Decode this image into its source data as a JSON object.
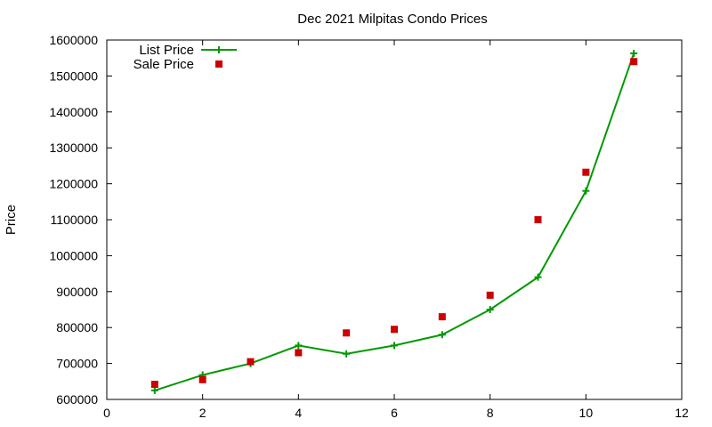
{
  "chart_data": {
    "type": "line",
    "title": "Dec 2021 Milpitas Condo Prices",
    "xlabel": "",
    "ylabel": "Price",
    "xlim": [
      0,
      12
    ],
    "ylim": [
      600000,
      1600000
    ],
    "xticks": [
      0,
      2,
      4,
      6,
      8,
      10,
      12
    ],
    "yticks": [
      600000,
      700000,
      800000,
      900000,
      1000000,
      1100000,
      1200000,
      1300000,
      1400000,
      1500000,
      1600000
    ],
    "grid": false,
    "legend_position": "top-left",
    "series": [
      {
        "name": "List Price",
        "style": "line+cross",
        "color": "#009900",
        "x": [
          1,
          2,
          3,
          4,
          5,
          6,
          7,
          8,
          9,
          10,
          11
        ],
        "y": [
          625000,
          668000,
          700000,
          750000,
          727000,
          750000,
          780000,
          850000,
          940000,
          1180000,
          1563000
        ]
      },
      {
        "name": "Sale Price",
        "style": "square",
        "color": "#cc0000",
        "x": [
          1,
          2,
          3,
          4,
          5,
          6,
          7,
          8,
          9,
          10,
          11
        ],
        "y": [
          642000,
          655000,
          705000,
          730000,
          785000,
          795000,
          830000,
          890000,
          1100000,
          1232000,
          1540000
        ]
      }
    ]
  }
}
